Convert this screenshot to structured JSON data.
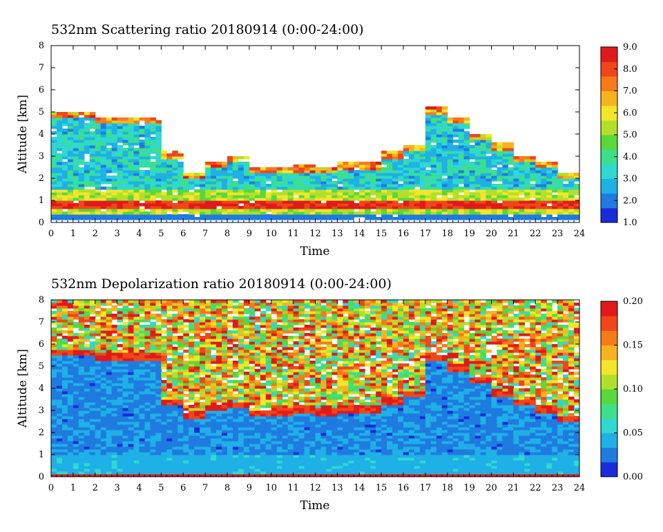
{
  "chart_data": [
    {
      "type": "heatmap",
      "title": "532nm Scattering ratio  20180914 (0:00-24:00)",
      "xlabel": "Time",
      "ylabel": "Altitude [km]",
      "xlim": [
        0,
        24
      ],
      "ylim": [
        0,
        8
      ],
      "x_ticks": [
        "0",
        "1",
        "2",
        "3",
        "4",
        "5",
        "6",
        "7",
        "8",
        "9",
        "10",
        "11",
        "12",
        "13",
        "14",
        "15",
        "16",
        "17",
        "18",
        "19",
        "20",
        "21",
        "22",
        "23",
        "24"
      ],
      "y_ticks": [
        "0",
        "1",
        "2",
        "3",
        "4",
        "5",
        "6",
        "7",
        "8"
      ],
      "colorbar": {
        "range": [
          1.0,
          9.0
        ],
        "ticks": [
          "1.0",
          "2.0",
          "3.0",
          "4.0",
          "5.0",
          "6.0",
          "7.0",
          "8.0",
          "9.0"
        ]
      },
      "colormap": [
        "#1a2bd9",
        "#1f7be0",
        "#1fb0e6",
        "#2fd8d0",
        "#3ce08a",
        "#58d83a",
        "#b2e02a",
        "#f2e62a",
        "#f7b21f",
        "#f77a1a",
        "#f0461a",
        "#e01a1a"
      ],
      "features": {
        "low_layer_top_km": 1.2,
        "high_scatter_layer_km": [
          0.6,
          1.0
        ],
        "cloud_layer_tops_km_by_hour": [
          5.0,
          5.0,
          4.8,
          4.8,
          4.8,
          3.2,
          2.3,
          2.8,
          3.0,
          2.5,
          2.5,
          2.6,
          2.5,
          2.7,
          2.7,
          3.2,
          3.5,
          5.2,
          4.8,
          4.0,
          3.6,
          3.0,
          2.8,
          2.3
        ]
      }
    },
    {
      "type": "heatmap",
      "title": "532nm Depolarization ratio  20180914 (0:00-24:00)",
      "xlabel": "Time",
      "ylabel": "Altitude [km]",
      "xlim": [
        0,
        24
      ],
      "ylim": [
        0,
        8
      ],
      "x_ticks": [
        "0",
        "1",
        "2",
        "3",
        "4",
        "5",
        "6",
        "7",
        "8",
        "9",
        "10",
        "11",
        "12",
        "13",
        "14",
        "15",
        "16",
        "17",
        "18",
        "19",
        "20",
        "21",
        "22",
        "23",
        "24"
      ],
      "y_ticks": [
        "0",
        "1",
        "2",
        "3",
        "4",
        "5",
        "6",
        "7",
        "8"
      ],
      "colorbar": {
        "range": [
          0.0,
          0.2
        ],
        "ticks": [
          "0.00",
          "0.05",
          "0.10",
          "0.15",
          "0.20"
        ]
      },
      "colormap": [
        "#1a2bd9",
        "#1f7be0",
        "#1fb0e6",
        "#2fd8d0",
        "#3ce08a",
        "#58d83a",
        "#b2e02a",
        "#f2e62a",
        "#f7b21f",
        "#f77a1a",
        "#f0461a",
        "#e01a1a"
      ],
      "features": {
        "noise_above_km_by_hour": [
          5.5,
          5.5,
          5.3,
          5.3,
          5.3,
          3.2,
          2.6,
          3.0,
          3.1,
          2.7,
          2.8,
          2.9,
          2.8,
          2.9,
          2.9,
          3.3,
          3.6,
          5.2,
          4.8,
          4.2,
          3.6,
          3.2,
          2.9,
          2.5
        ]
      }
    }
  ]
}
